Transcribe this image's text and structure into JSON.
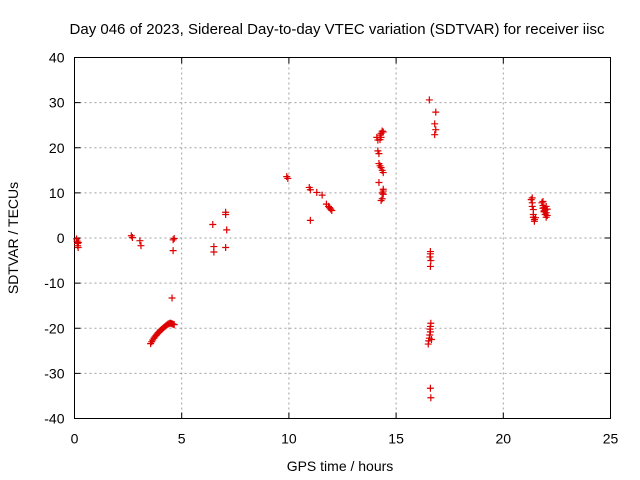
{
  "chart_data": {
    "type": "scatter",
    "title": "Day 046 of 2023, Sidereal Day-to-day VTEC variation (SDTVAR) for receiver iisc",
    "xlabel": "GPS time / hours",
    "ylabel": "SDTVAR / TECUs",
    "xlim": [
      0,
      25
    ],
    "ylim": [
      -40,
      40
    ],
    "xticks": [
      0,
      5,
      10,
      15,
      20,
      25
    ],
    "yticks": [
      -40,
      -30,
      -20,
      -10,
      0,
      10,
      20,
      30,
      40
    ],
    "xtick_labels": [
      "0",
      "5",
      "10",
      "15",
      "20",
      "25"
    ],
    "ytick_labels": [
      "-40",
      "-30",
      "-20",
      "-10",
      "0",
      "10",
      "20",
      "30",
      "40"
    ],
    "grid": true,
    "marker": "plus",
    "marker_color": "#dd0000",
    "series": [
      {
        "name": "SDTVAR",
        "x": [
          0.1,
          0.12,
          0.14,
          0.15,
          0.17,
          0.18,
          2.65,
          2.7,
          3.05,
          3.1,
          3.55,
          3.6,
          3.65,
          3.7,
          3.75,
          3.8,
          3.85,
          3.9,
          3.95,
          4.0,
          4.05,
          4.1,
          4.15,
          4.2,
          4.25,
          4.3,
          4.35,
          4.4,
          4.45,
          4.5,
          4.55,
          4.6,
          4.65,
          4.55,
          4.6,
          4.6,
          4.65,
          6.45,
          6.5,
          6.5,
          7.05,
          7.05,
          7.1,
          7.05,
          9.9,
          9.95,
          10.95,
          11.0,
          11.0,
          11.3,
          11.55,
          11.75,
          11.85,
          11.9,
          11.95,
          12.0,
          14.1,
          14.15,
          14.15,
          14.2,
          14.2,
          14.2,
          14.25,
          14.25,
          14.25,
          14.3,
          14.3,
          14.3,
          14.35,
          14.35,
          14.4,
          14.4,
          14.35,
          14.4,
          14.3,
          14.35,
          14.4,
          14.4,
          16.5,
          16.52,
          16.55,
          16.57,
          16.6,
          16.58,
          16.6,
          16.62,
          16.65,
          16.6,
          16.62,
          16.58,
          16.6,
          16.6,
          16.55,
          16.6,
          16.62,
          16.85,
          16.8,
          16.85,
          16.8,
          21.3,
          21.35,
          21.35,
          21.4,
          21.4,
          21.45,
          21.45,
          21.5,
          21.35,
          21.4,
          21.8,
          21.85,
          21.9,
          21.95,
          22.0,
          22.05,
          21.85,
          21.9,
          21.95,
          22.0,
          21.85,
          21.9,
          22.0,
          22.05
        ],
        "y": [
          -0.2,
          -0.7,
          -1.2,
          -1.7,
          -2.1,
          -1.0,
          0.5,
          0.1,
          -0.6,
          -1.7,
          -23.4,
          -23.0,
          -22.6,
          -22.2,
          -21.9,
          -21.6,
          -21.3,
          -21.0,
          -20.8,
          -20.5,
          -20.3,
          -20.1,
          -19.9,
          -19.7,
          -19.5,
          -19.3,
          -19.1,
          -19.0,
          -18.9,
          -18.9,
          -19.0,
          -19.1,
          -19.2,
          -13.3,
          -2.8,
          -0.4,
          -0.1,
          3.0,
          -1.9,
          -3.1,
          5.7,
          5.2,
          1.8,
          -2.1,
          13.6,
          13.2,
          11.2,
          10.7,
          3.9,
          10.1,
          9.5,
          7.5,
          7.0,
          6.7,
          6.4,
          6.1,
          22.3,
          21.7,
          19.3,
          18.7,
          16.5,
          12.3,
          22.8,
          21.8,
          16.0,
          23.2,
          22.3,
          15.6,
          23.7,
          15.0,
          23.5,
          10.8,
          10.0,
          10.4,
          8.3,
          8.7,
          9.7,
          14.5,
          -23.5,
          -22.8,
          -22.2,
          -21.5,
          -20.8,
          -20.2,
          -19.6,
          -18.9,
          -22.5,
          -6.3,
          -5.0,
          -4.2,
          -3.5,
          -3.0,
          30.6,
          -33.3,
          -35.4,
          27.9,
          25.3,
          24.0,
          22.9,
          8.5,
          7.8,
          7.0,
          6.3,
          4.6,
          4.1,
          3.7,
          4.5,
          8.9,
          5.2,
          7.8,
          7.2,
          6.7,
          6.2,
          5.6,
          5.0,
          8.1,
          6.0,
          5.2,
          4.6,
          6.6,
          5.8,
          7.0,
          6.4
        ]
      }
    ]
  }
}
